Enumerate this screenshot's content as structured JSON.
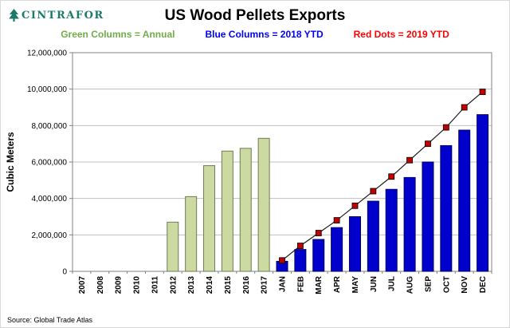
{
  "logo": {
    "text": "CINTRAFOR",
    "color": "#1b7a68"
  },
  "legend": {
    "items": [
      {
        "label": "Green Columns = Annual",
        "color": "#70ad47"
      },
      {
        "label": "Blue Columns = 2018 YTD",
        "color": "#0000ff"
      },
      {
        "label": "Red Dots = 2019 YTD",
        "color": "#ff0000"
      }
    ]
  },
  "source": "Source: Global Trade Atlas",
  "chart_style": {
    "grid_color": "#c0c0c0",
    "plot_border_color": "#808080",
    "tick_label_color": "#000000"
  },
  "chart_data": {
    "type": "bar",
    "title": "US Wood Pellets Exports",
    "xlabel": "",
    "ylabel": "Cubic Meters",
    "ylim": [
      0,
      12000000
    ],
    "ytick_interval": 2000000,
    "grid": true,
    "legend_position": "top",
    "categories": [
      "2007",
      "2008",
      "2009",
      "2010",
      "2011",
      "2012",
      "2013",
      "2014",
      "2015",
      "2016",
      "2017",
      "JAN",
      "FEB",
      "MAR",
      "APR",
      "MAY",
      "JUN",
      "JUL",
      "AUG",
      "SEP",
      "OCT",
      "NOV",
      "DEC"
    ],
    "series": [
      {
        "name": "Annual",
        "type": "bar",
        "color": "#ccd9a0",
        "border": "#6e7b57",
        "values": [
          0,
          0,
          0,
          0,
          0,
          2700000,
          4100000,
          5800000,
          6600000,
          6750000,
          7300000,
          null,
          null,
          null,
          null,
          null,
          null,
          null,
          null,
          null,
          null,
          null,
          null
        ]
      },
      {
        "name": "2018 YTD",
        "type": "bar",
        "color": "#0000cc",
        "border": "#000066",
        "values": [
          null,
          null,
          null,
          null,
          null,
          null,
          null,
          null,
          null,
          null,
          null,
          550000,
          1200000,
          1750000,
          2400000,
          3000000,
          3850000,
          4500000,
          5150000,
          6000000,
          6900000,
          7750000,
          8600000
        ]
      },
      {
        "name": "2019 YTD",
        "type": "line",
        "marker": "square",
        "color": "#c00000",
        "line_color": "#1a1a1a",
        "values": [
          null,
          null,
          null,
          null,
          null,
          null,
          null,
          null,
          null,
          null,
          null,
          600000,
          1400000,
          2100000,
          2800000,
          3600000,
          4400000,
          5200000,
          6100000,
          7000000,
          7900000,
          9000000,
          9850000
        ]
      }
    ]
  }
}
